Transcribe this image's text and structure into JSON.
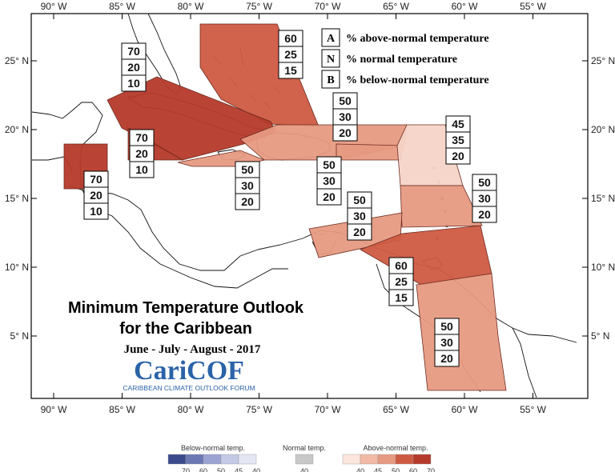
{
  "map": {
    "x_ticks": [
      {
        "lon": -90,
        "label": "90° W"
      },
      {
        "lon": -85,
        "label": "85° W"
      },
      {
        "lon": -80,
        "label": "80° W"
      },
      {
        "lon": -75,
        "label": "75° W"
      },
      {
        "lon": -70,
        "label": "70° W"
      },
      {
        "lon": -65,
        "label": "65° W"
      },
      {
        "lon": -60,
        "label": "60° W"
      },
      {
        "lon": -55,
        "label": "55° W"
      }
    ],
    "y_ticks": [
      {
        "lat": 25,
        "label": "25° N"
      },
      {
        "lat": 20,
        "label": "20° N"
      },
      {
        "lat": 15,
        "label": "15° N"
      },
      {
        "lat": 10,
        "label": "10° N"
      },
      {
        "lat": 5,
        "label": "5° N"
      }
    ]
  },
  "regions": [
    {
      "name": "bahamas",
      "color": "#cf5a42",
      "above": "60",
      "normal": "25",
      "below": "15"
    },
    {
      "name": "cuba",
      "color": "#b53a2a",
      "above": "70",
      "normal": "20",
      "below": "10"
    },
    {
      "name": "belize",
      "color": "#b53a2a",
      "above": "70",
      "normal": "20",
      "below": "10"
    },
    {
      "name": "cayman",
      "color": "#b53a2a",
      "above": "70",
      "normal": "20",
      "below": "10"
    },
    {
      "name": "hispaniola",
      "color": "#e79a82",
      "above": "50",
      "normal": "30",
      "below": "20"
    },
    {
      "name": "jamaica",
      "color": "#e79a82",
      "above": "50",
      "normal": "30",
      "below": "20"
    },
    {
      "name": "puerto-rico",
      "color": "#e79a82",
      "above": "50",
      "normal": "30",
      "below": "20"
    },
    {
      "name": "leeward",
      "color": "#f6d4c7",
      "above": "45",
      "normal": "35",
      "below": "20"
    },
    {
      "name": "windward",
      "color": "#e79a82",
      "above": "50",
      "normal": "30",
      "below": "20"
    },
    {
      "name": "abc-islands",
      "color": "#e79a82",
      "above": "50",
      "normal": "30",
      "below": "20"
    },
    {
      "name": "trinidad",
      "color": "#cf5a42",
      "above": "60",
      "normal": "25",
      "below": "15"
    },
    {
      "name": "guianas",
      "color": "#e79a82",
      "above": "50",
      "normal": "30",
      "below": "20"
    }
  ],
  "key": {
    "items": [
      {
        "letter": "A",
        "desc": "% above-normal temperature"
      },
      {
        "letter": "N",
        "desc": "% normal temperature"
      },
      {
        "letter": "B",
        "desc": "% below-normal temperature"
      }
    ]
  },
  "title": {
    "line1": "Minimum Temperature Outlook",
    "line2": "for the Caribbean",
    "season": "June - July - August - 2017"
  },
  "logo": {
    "name": "CariCOF",
    "tagline": "CARIBBEAN CLIMATE OUTLOOK FORUM"
  },
  "legend": {
    "below": {
      "title": "Below-normal temp.",
      "ticks": [
        "70",
        "60",
        "50",
        "45",
        "40"
      ],
      "colors": [
        "#3a4a8c",
        "#6b78b4",
        "#9aa3d1",
        "#c4c9e6",
        "#e4e6f4"
      ]
    },
    "normal": {
      "title": "Normal temp.",
      "ticks": [
        "40"
      ],
      "colors": [
        "#c8c8c8"
      ]
    },
    "above": {
      "title": "Above-normal temp.",
      "ticks": [
        "40",
        "45",
        "50",
        "60",
        "70"
      ],
      "colors": [
        "#fbe6de",
        "#f2b9a6",
        "#e79a82",
        "#cf5a42",
        "#b53a2a"
      ]
    }
  }
}
